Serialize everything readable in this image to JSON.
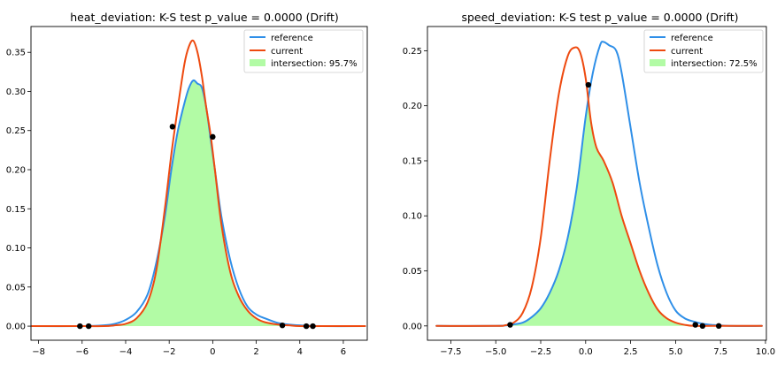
{
  "chart_data": [
    {
      "type": "line",
      "title": "heat_deviation: K-S test p_value = 0.0000 (Drift)",
      "xlabel": "",
      "ylabel": "",
      "xlim": [
        -8.35,
        7.1
      ],
      "ylim": [
        -0.018,
        0.383
      ],
      "xticks": [
        -8,
        -6,
        -4,
        -2,
        0,
        2,
        4,
        6
      ],
      "xtick_labels": [
        "−8",
        "−6",
        "−4",
        "−2",
        "0",
        "2",
        "4",
        "6"
      ],
      "yticks": [
        0.0,
        0.05,
        0.1,
        0.15,
        0.2,
        0.25,
        0.3,
        0.35
      ],
      "ytick_labels": [
        "0.00",
        "0.05",
        "0.10",
        "0.15",
        "0.20",
        "0.25",
        "0.30",
        "0.35"
      ],
      "grid": false,
      "legend_position": "top-right",
      "series": [
        {
          "name": "reference",
          "color": "#2f8fe8",
          "x": [
            -8.3,
            -6.0,
            -5.0,
            -4.5,
            -4.0,
            -3.5,
            -3.0,
            -2.6,
            -2.2,
            -1.9,
            -1.6,
            -1.3,
            -1.1,
            -0.9,
            -0.7,
            -0.5,
            -0.3,
            -0.1,
            0.1,
            0.4,
            0.8,
            1.2,
            1.6,
            2.0,
            2.4,
            3.0,
            3.5,
            4.0,
            5.0,
            7.0
          ],
          "y": [
            0.0,
            0.0,
            0.001,
            0.003,
            0.008,
            0.018,
            0.04,
            0.08,
            0.14,
            0.2,
            0.25,
            0.285,
            0.304,
            0.314,
            0.31,
            0.305,
            0.28,
            0.24,
            0.2,
            0.14,
            0.085,
            0.048,
            0.025,
            0.015,
            0.01,
            0.004,
            0.002,
            0.001,
            0.0,
            0.0
          ]
        },
        {
          "name": "current",
          "color": "#ee4a10",
          "x": [
            -8.3,
            -6.0,
            -5.0,
            -4.5,
            -4.0,
            -3.5,
            -3.0,
            -2.6,
            -2.2,
            -1.9,
            -1.6,
            -1.3,
            -1.1,
            -0.9,
            -0.7,
            -0.5,
            -0.3,
            -0.1,
            0.1,
            0.4,
            0.8,
            1.2,
            1.6,
            2.0,
            2.4,
            3.0,
            3.5,
            4.0,
            5.0,
            7.0
          ],
          "y": [
            0.0,
            0.0,
            0.0,
            0.001,
            0.003,
            0.01,
            0.03,
            0.07,
            0.15,
            0.22,
            0.28,
            0.335,
            0.357,
            0.365,
            0.35,
            0.32,
            0.28,
            0.245,
            0.2,
            0.13,
            0.07,
            0.038,
            0.02,
            0.01,
            0.005,
            0.002,
            0.001,
            0.0,
            0.0,
            0.0
          ]
        }
      ],
      "fill": {
        "label": "intersection: 95.7%",
        "color": "#b2fba5"
      },
      "points": {
        "color": "#000000",
        "x": [
          -6.1,
          -5.7,
          -1.85,
          0.0,
          3.2,
          4.3,
          4.6
        ],
        "y": [
          0.0,
          0.0,
          0.255,
          0.242,
          0.001,
          0.0,
          0.0
        ]
      }
    },
    {
      "type": "line",
      "title": "speed_deviation: K-S test p_value = 0.0000 (Drift)",
      "xlabel": "",
      "ylabel": "",
      "xlim": [
        -8.8,
        10.05
      ],
      "ylim": [
        -0.013,
        0.272
      ],
      "xticks": [
        -7.5,
        -5.0,
        -2.5,
        0.0,
        2.5,
        5.0,
        7.5,
        10.0
      ],
      "xtick_labels": [
        "−7.5",
        "−5.0",
        "−2.5",
        "0.0",
        "2.5",
        "5.0",
        "7.5",
        "10.0"
      ],
      "yticks": [
        0.0,
        0.05,
        0.1,
        0.15,
        0.2,
        0.25
      ],
      "ytick_labels": [
        "0.00",
        "0.05",
        "0.10",
        "0.15",
        "0.20",
        "0.25"
      ],
      "grid": false,
      "legend_position": "top-right",
      "series": [
        {
          "name": "reference",
          "color": "#2f8fe8",
          "x": [
            -8.3,
            -5.0,
            -4.2,
            -3.5,
            -3.0,
            -2.5,
            -2.0,
            -1.5,
            -1.0,
            -0.5,
            0.0,
            0.4,
            0.8,
            1.0,
            1.3,
            1.7,
            2.0,
            2.5,
            3.0,
            3.5,
            4.0,
            4.5,
            5.0,
            5.5,
            6.0,
            6.5,
            7.0,
            8.0,
            9.8
          ],
          "y": [
            0.0,
            0.0,
            0.001,
            0.003,
            0.008,
            0.016,
            0.03,
            0.05,
            0.08,
            0.125,
            0.19,
            0.23,
            0.255,
            0.258,
            0.255,
            0.25,
            0.23,
            0.18,
            0.13,
            0.09,
            0.055,
            0.03,
            0.014,
            0.007,
            0.004,
            0.002,
            0.001,
            0.0,
            0.0
          ]
        },
        {
          "name": "current",
          "color": "#ee4a10",
          "x": [
            -8.3,
            -5.0,
            -4.5,
            -4.0,
            -3.5,
            -3.0,
            -2.5,
            -2.0,
            -1.5,
            -1.0,
            -0.6,
            -0.3,
            0.0,
            0.3,
            0.6,
            1.0,
            1.5,
            2.0,
            2.5,
            3.0,
            3.5,
            4.0,
            4.5,
            5.0,
            5.5,
            6.0,
            7.0,
            9.8
          ],
          "y": [
            0.0,
            0.0,
            0.0005,
            0.003,
            0.012,
            0.035,
            0.08,
            0.15,
            0.21,
            0.245,
            0.253,
            0.248,
            0.225,
            0.185,
            0.162,
            0.15,
            0.13,
            0.1,
            0.075,
            0.05,
            0.03,
            0.015,
            0.007,
            0.003,
            0.001,
            0.0,
            0.0,
            0.0
          ]
        }
      ],
      "fill": {
        "label": "intersection: 72.5%",
        "color": "#b2fba5"
      },
      "points": {
        "color": "#000000",
        "x": [
          -4.2,
          0.15,
          6.1,
          6.5,
          7.4
        ],
        "y": [
          0.001,
          0.219,
          0.001,
          0.0,
          0.0
        ]
      }
    }
  ]
}
